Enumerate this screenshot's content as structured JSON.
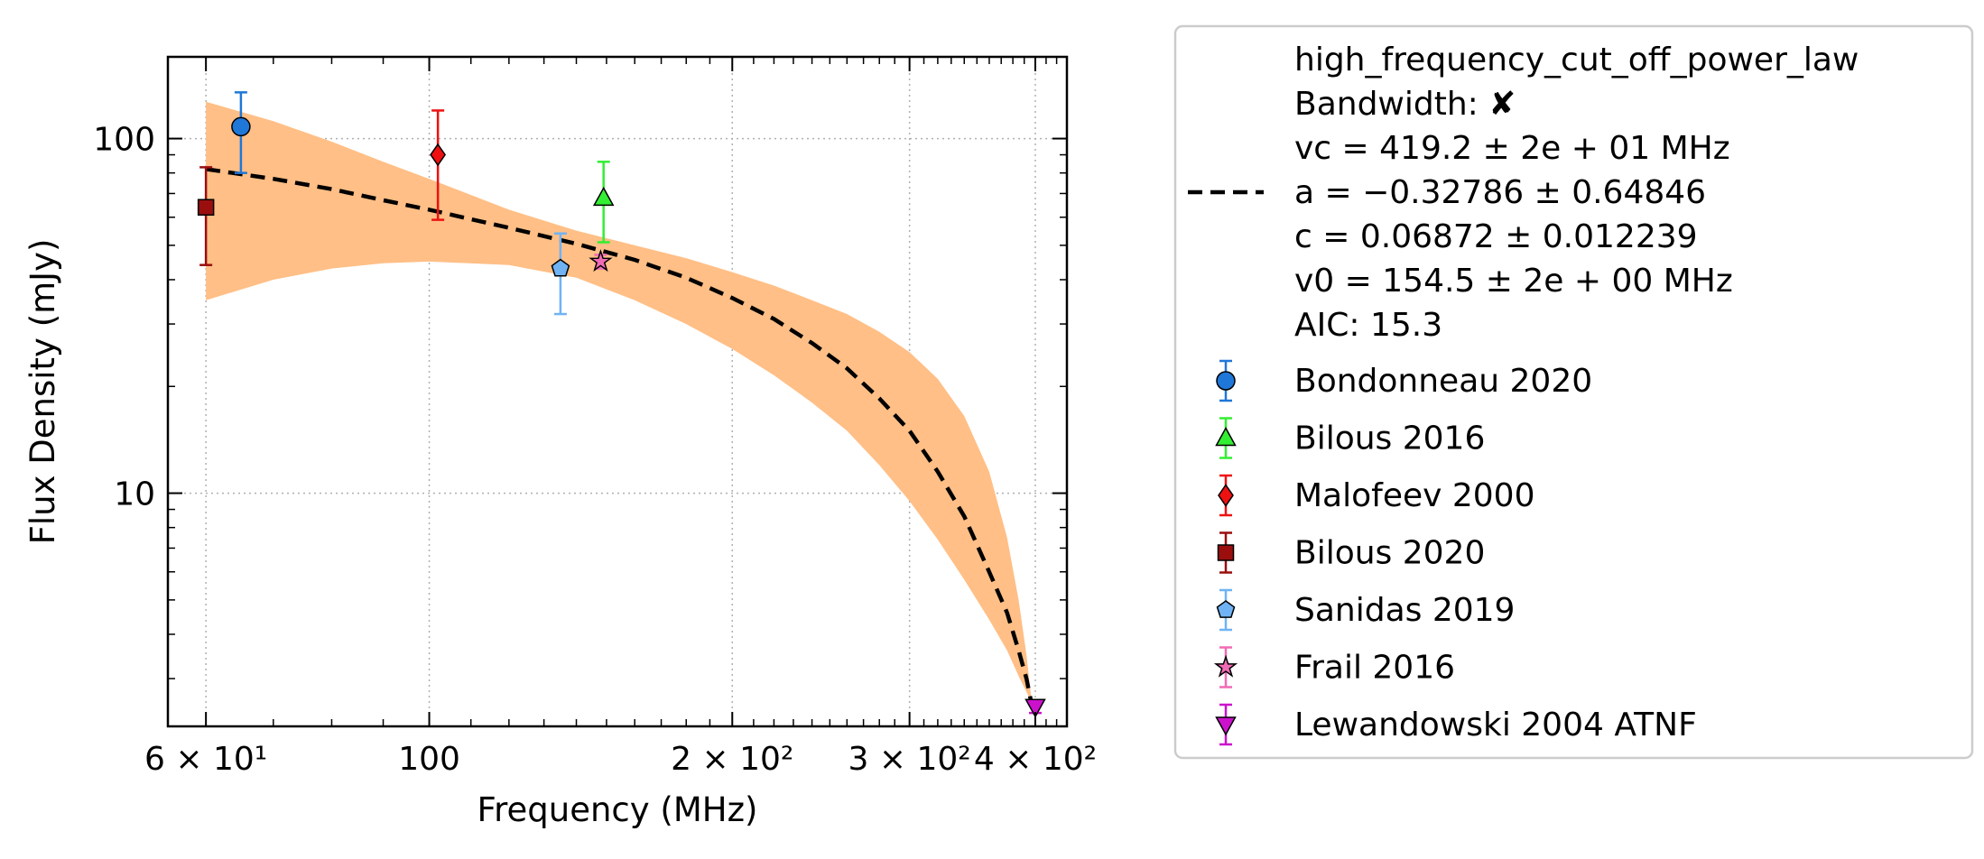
{
  "chart_data": {
    "type": "scatter",
    "xlabel": "Frequency (MHz)",
    "ylabel": "Flux Density (mJy)",
    "xscale": "log",
    "yscale": "log",
    "xlim": [
      55,
      430
    ],
    "ylim": [
      2.2,
      170
    ],
    "grid": true,
    "legend_position": "outside-right",
    "x_ticks": [
      {
        "value": 60,
        "label": "6 × 10¹"
      },
      {
        "value": 100,
        "label": "100"
      },
      {
        "value": 200,
        "label": "2 × 10²"
      },
      {
        "value": 300,
        "label": "3 × 10²"
      },
      {
        "value": 400,
        "label": "4 × 10²"
      }
    ],
    "y_ticks": [
      {
        "value": 10,
        "label": "10"
      },
      {
        "value": 100,
        "label": "100"
      }
    ],
    "fit": {
      "model": "high_frequency_cut_off_power_law",
      "color": "#000000",
      "band_color": "#ffbf86",
      "legend_lines": [
        "high_frequency_cut_off_power_law",
        "Bandwidth: ✘",
        "vc = 419.2 ± 2e + 01 MHz",
        "a = −0.32786 ± 0.64846",
        "c = 0.06872 ± 0.012239",
        "v0 = 154.5 ± 2e + 00 MHz",
        "AIC: 15.3"
      ],
      "curve": {
        "x": [
          60,
          70,
          80,
          90,
          100,
          120,
          140,
          160,
          180,
          200,
          220,
          240,
          260,
          280,
          300,
          320,
          340,
          360,
          375,
          385,
          392,
          396
        ],
        "y": [
          82,
          77,
          72,
          67,
          63,
          56,
          50.5,
          45.5,
          40.5,
          35.5,
          31,
          26.5,
          22.5,
          18.5,
          15,
          11.5,
          8.6,
          6.0,
          4.6,
          3.6,
          3.0,
          2.6
        ]
      },
      "band_upper": {
        "x": [
          60,
          70,
          80,
          90,
          100,
          120,
          140,
          160,
          180,
          200,
          220,
          240,
          260,
          280,
          300,
          320,
          340,
          360,
          375,
          385,
          392,
          396
        ],
        "y": [
          127,
          112,
          98,
          86,
          77,
          63,
          55,
          50,
          46,
          42,
          38.5,
          35,
          32,
          28.5,
          25,
          21,
          16.5,
          11.5,
          7.5,
          5.0,
          3.5,
          2.7
        ]
      },
      "band_lower": {
        "x": [
          60,
          70,
          80,
          90,
          100,
          120,
          140,
          160,
          180,
          200,
          220,
          240,
          260,
          280,
          300,
          320,
          340,
          360,
          375,
          385,
          392,
          396
        ],
        "y": [
          35,
          40,
          43,
          44.5,
          45,
          44,
          40.5,
          35,
          30,
          25.5,
          21.5,
          18,
          15,
          12,
          9.5,
          7.4,
          5.7,
          4.4,
          3.6,
          3.05,
          2.75,
          2.6
        ]
      }
    },
    "series": [
      {
        "name": "Bondonneau 2020",
        "marker": "circle",
        "color": "#1f77d8",
        "x": [
          65
        ],
        "y": [
          108
        ],
        "yerr_low": [
          80
        ],
        "yerr_high": [
          135
        ]
      },
      {
        "name": "Bilous 2016",
        "marker": "triangle-up",
        "color": "#33ee33",
        "x": [
          149
        ],
        "y": [
          68
        ],
        "yerr_low": [
          51
        ],
        "yerr_high": [
          86
        ]
      },
      {
        "name": "Malofeev 2000",
        "marker": "diamond",
        "color": "#ee1111",
        "x": [
          102
        ],
        "y": [
          90
        ],
        "yerr_low": [
          59
        ],
        "yerr_high": [
          120
        ]
      },
      {
        "name": "Bilous 2020",
        "marker": "square",
        "color": "#9b0e0e",
        "x": [
          60
        ],
        "y": [
          64
        ],
        "yerr_low": [
          44
        ],
        "yerr_high": [
          83
        ]
      },
      {
        "name": "Sanidas 2019",
        "marker": "pentagon",
        "color": "#6fb3f5",
        "x": [
          135
        ],
        "y": [
          43
        ],
        "yerr_low": [
          32
        ],
        "yerr_high": [
          54
        ]
      },
      {
        "name": "Frail 2016",
        "marker": "star",
        "color": "#f06bb5",
        "x": [
          148
        ],
        "y": [
          45
        ],
        "yerr_low": [
          43
        ],
        "yerr_high": [
          47
        ]
      },
      {
        "name": "Lewandowski 2004 ATNF",
        "marker": "triangle-down",
        "color": "#cc11cc",
        "x": [
          400
        ],
        "y": [
          2.5
        ],
        "yerr_low": [
          2.4
        ],
        "yerr_high": [
          2.6
        ]
      }
    ]
  }
}
